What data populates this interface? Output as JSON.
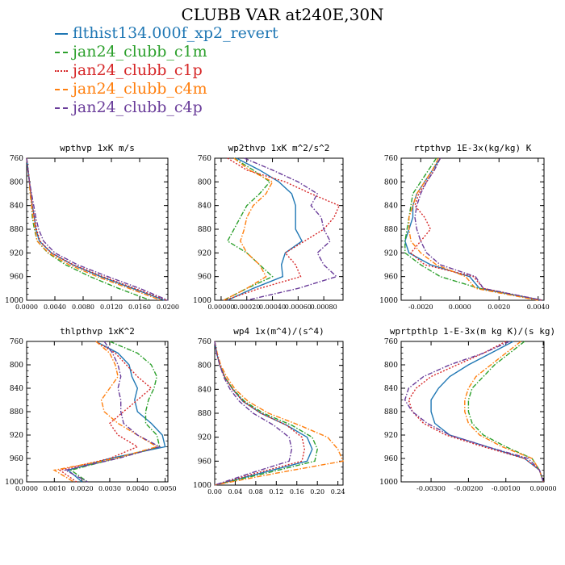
{
  "title": "CLUBB VAR at240E,30N",
  "colors": {
    "flthist134.000f_xp2_revert": "#1f77b4",
    "jan24_clubb_c1m": "#2ca02c",
    "jan24_clubb_c1p": "#d62728",
    "jan24_clubb_c4m": "#ff7f0e",
    "jan24_clubb_c4p": "#6a3d9a"
  },
  "legend": [
    {
      "label": "flthist134.000f_xp2_revert",
      "color": "#1f77b4",
      "dash": "solid"
    },
    {
      "label": "jan24_clubb_c1m",
      "color": "#2ca02c",
      "dash": "dashdot"
    },
    {
      "label": "jan24_clubb_c1p",
      "color": "#d62728",
      "dash": "dotted"
    },
    {
      "label": "jan24_clubb_c4m",
      "color": "#ff7f0e",
      "dash": "dashdot"
    },
    {
      "label": "jan24_clubb_c4p",
      "color": "#6a3d9a",
      "dash": "dashdot"
    }
  ],
  "chart_data": [
    {
      "type": "line",
      "title": "wpthvp  1xK m/s",
      "xlim": [
        0,
        0.02
      ],
      "xticks": [
        "0.0000",
        "0.0040",
        "0.0080",
        "0.0120",
        "0.0160",
        "0.0200"
      ],
      "xtick_values": [
        0,
        0.004,
        0.008,
        0.012,
        0.016,
        0.02
      ],
      "ylim": [
        760,
        1000
      ],
      "yticks": [
        760,
        800,
        840,
        880,
        920,
        960,
        1000
      ],
      "y": [
        760,
        780,
        800,
        820,
        840,
        860,
        880,
        900,
        920,
        940,
        960,
        980,
        1000
      ],
      "series": [
        {
          "name": "flthist134.000f_xp2_revert",
          "values": [
            0.0,
            0.0002,
            0.0004,
            0.0006,
            0.0008,
            0.0011,
            0.0013,
            0.0018,
            0.0035,
            0.0065,
            0.0105,
            0.015,
            0.0195
          ]
        },
        {
          "name": "jan24_clubb_c1m",
          "values": [
            0.0,
            0.0002,
            0.0004,
            0.0005,
            0.0007,
            0.0008,
            0.0011,
            0.0015,
            0.003,
            0.0055,
            0.009,
            0.013,
            0.0175
          ]
        },
        {
          "name": "jan24_clubb_c1p",
          "values": [
            0.0,
            0.0002,
            0.0004,
            0.0006,
            0.0008,
            0.0011,
            0.0014,
            0.0019,
            0.0035,
            0.0066,
            0.0108,
            0.0153,
            0.0198
          ]
        },
        {
          "name": "jan24_clubb_c4m",
          "values": [
            0.0,
            0.0002,
            0.0004,
            0.0005,
            0.0007,
            0.0009,
            0.0012,
            0.0015,
            0.0031,
            0.006,
            0.01,
            0.0145,
            0.019
          ]
        },
        {
          "name": "jan24_clubb_c4p",
          "values": [
            0.0,
            0.0002,
            0.0004,
            0.0007,
            0.001,
            0.0013,
            0.0017,
            0.0024,
            0.004,
            0.0072,
            0.0115,
            0.016,
            0.02
          ]
        }
      ]
    },
    {
      "type": "line",
      "title": "wp2thvp  1xK m^2/s^2",
      "xlim": [
        -5e-05,
        0.00095
      ],
      "xticks": [
        "0.00000",
        "0.00020",
        "0.00040",
        "0.00060",
        "0.00080"
      ],
      "xtick_values": [
        0,
        0.0002,
        0.0004,
        0.0006,
        0.0008
      ],
      "ylim": [
        760,
        1000
      ],
      "yticks": [
        760,
        800,
        840,
        880,
        920,
        960,
        1000
      ],
      "y": [
        760,
        780,
        800,
        820,
        840,
        860,
        880,
        900,
        920,
        940,
        960,
        980,
        1000
      ],
      "series": [
        {
          "name": "flthist134.000f_xp2_revert",
          "values": [
            0.00012,
            0.0003,
            0.00045,
            0.00055,
            0.00058,
            0.00058,
            0.00058,
            0.00063,
            0.0005,
            0.00047,
            0.00048,
            0.00025,
            5e-05
          ]
        },
        {
          "name": "jan24_clubb_c1m",
          "values": [
            0.0001,
            0.00025,
            0.00038,
            0.0003,
            0.0002,
            0.00015,
            0.0001,
            5e-05,
            0.0002,
            0.0003,
            0.0004,
            0.0002,
            2e-05
          ]
        },
        {
          "name": "jan24_clubb_c1p",
          "values": [
            5e-05,
            0.0002,
            0.0005,
            0.0007,
            0.00092,
            0.00088,
            0.0008,
            0.00065,
            0.0005,
            0.00058,
            0.00062,
            0.0003,
            3e-05
          ]
        },
        {
          "name": "jan24_clubb_c4m",
          "values": [
            0.0001,
            0.00022,
            0.0004,
            0.00035,
            0.00025,
            0.0002,
            0.00018,
            0.00015,
            0.0002,
            0.0003,
            0.00035,
            0.0002,
            2e-05
          ]
        },
        {
          "name": "jan24_clubb_c4p",
          "values": [
            0.00018,
            0.0004,
            0.0006,
            0.00075,
            0.0007,
            0.00078,
            0.0008,
            0.00085,
            0.00075,
            0.0008,
            0.0009,
            0.0006,
            0.0002
          ]
        }
      ]
    },
    {
      "type": "line",
      "title": "rtpthvp  1E-3x(kg/kg) K",
      "xlim": [
        -0.003,
        0.0043
      ],
      "xticks": [
        "-0.0020",
        "0.0000",
        "0.0020",
        "0.0040"
      ],
      "xtick_values": [
        -0.002,
        0,
        0.002,
        0.004
      ],
      "ylim": [
        760,
        1000
      ],
      "yticks": [
        760,
        800,
        840,
        880,
        920,
        960,
        1000
      ],
      "y": [
        760,
        780,
        800,
        820,
        840,
        860,
        880,
        900,
        920,
        940,
        960,
        980,
        1000
      ],
      "series": [
        {
          "name": "flthist134.000f_xp2_revert",
          "values": [
            -0.001,
            -0.0014,
            -0.0018,
            -0.0022,
            -0.0024,
            -0.0024,
            -0.0026,
            -0.0028,
            -0.0026,
            -0.0015,
            0.0005,
            0.001,
            0.0042
          ]
        },
        {
          "name": "jan24_clubb_c1m",
          "values": [
            -0.0012,
            -0.0016,
            -0.002,
            -0.0024,
            -0.0025,
            -0.0026,
            -0.0027,
            -0.0028,
            -0.0028,
            -0.002,
            -0.001,
            0.001,
            0.004
          ]
        },
        {
          "name": "jan24_clubb_c1p",
          "values": [
            -0.001,
            -0.0013,
            -0.0017,
            -0.0021,
            -0.0023,
            -0.0018,
            -0.0015,
            -0.002,
            -0.0025,
            -0.0018,
            0.0007,
            0.0012,
            0.0042
          ]
        },
        {
          "name": "jan24_clubb_c4m",
          "values": [
            -0.0011,
            -0.0014,
            -0.0018,
            -0.0022,
            -0.0024,
            -0.0026,
            -0.0026,
            -0.0025,
            -0.002,
            -0.0012,
            0.0003,
            0.0008,
            0.004
          ]
        },
        {
          "name": "jan24_clubb_c4p",
          "values": [
            -0.001,
            -0.0013,
            -0.0017,
            -0.002,
            -0.0022,
            -0.0023,
            -0.0022,
            -0.002,
            -0.0017,
            -0.001,
            0.0008,
            0.0012,
            0.0042
          ]
        }
      ]
    },
    {
      "type": "line",
      "title": "thlpthvp  1xK^2",
      "xlim": [
        0,
        0.0051
      ],
      "xticks": [
        "0.0000",
        "0.0010",
        "0.0020",
        "0.0030",
        "0.0040",
        "0.0050"
      ],
      "xtick_values": [
        0,
        0.001,
        0.002,
        0.003,
        0.004,
        0.005
      ],
      "ylim": [
        760,
        1000
      ],
      "yticks": [
        760,
        800,
        840,
        880,
        920,
        960,
        1000
      ],
      "y": [
        760,
        780,
        800,
        820,
        840,
        860,
        880,
        900,
        920,
        940,
        960,
        980,
        1000
      ],
      "series": [
        {
          "name": "flthist134.000f_xp2_revert",
          "values": [
            0.0025,
            0.0033,
            0.0037,
            0.0038,
            0.004,
            0.0039,
            0.004,
            0.0045,
            0.0049,
            0.005,
            0.003,
            0.0015,
            0.002
          ]
        },
        {
          "name": "jan24_clubb_c1m",
          "values": [
            0.003,
            0.004,
            0.0045,
            0.0047,
            0.0046,
            0.0044,
            0.0043,
            0.0043,
            0.0047,
            0.0048,
            0.0032,
            0.0016,
            0.0022
          ]
        },
        {
          "name": "jan24_clubb_c1p",
          "values": [
            0.0025,
            0.0032,
            0.0036,
            0.004,
            0.0045,
            0.004,
            0.0035,
            0.003,
            0.0033,
            0.004,
            0.003,
            0.0012,
            0.0018
          ]
        },
        {
          "name": "jan24_clubb_c4m",
          "values": [
            0.0025,
            0.003,
            0.0032,
            0.0033,
            0.003,
            0.0027,
            0.0028,
            0.0033,
            0.004,
            0.0047,
            0.0032,
            0.001,
            0.0017
          ]
        },
        {
          "name": "jan24_clubb_c4p",
          "values": [
            0.0028,
            0.0031,
            0.0033,
            0.0034,
            0.0033,
            0.0034,
            0.0034,
            0.0035,
            0.004,
            0.0048,
            0.0033,
            0.0014,
            0.0022
          ]
        }
      ]
    },
    {
      "type": "line",
      "title": "wp4  1x(m^4)/(s^4)",
      "xlim": [
        0,
        0.25
      ],
      "xticks": [
        "0.00",
        "0.04",
        "0.08",
        "0.12",
        "0.16",
        "0.20",
        "0.24"
      ],
      "xtick_values": [
        0,
        0.04,
        0.08,
        0.12,
        0.16,
        0.2,
        0.24
      ],
      "ylim": [
        760,
        1000
      ],
      "yticks": [
        760,
        800,
        840,
        880,
        920,
        960,
        1000
      ],
      "y": [
        760,
        780,
        800,
        820,
        840,
        860,
        880,
        900,
        920,
        940,
        960,
        980,
        1000
      ],
      "series": [
        {
          "name": "flthist134.000f_xp2_revert",
          "values": [
            0.0,
            0.004,
            0.01,
            0.02,
            0.035,
            0.055,
            0.09,
            0.14,
            0.18,
            0.19,
            0.18,
            0.09,
            0.0
          ]
        },
        {
          "name": "jan24_clubb_c1m",
          "values": [
            0.0,
            0.004,
            0.01,
            0.02,
            0.036,
            0.058,
            0.095,
            0.15,
            0.19,
            0.2,
            0.195,
            0.1,
            0.0
          ]
        },
        {
          "name": "jan24_clubb_c1p",
          "values": [
            0.0,
            0.004,
            0.01,
            0.02,
            0.035,
            0.055,
            0.09,
            0.14,
            0.17,
            0.175,
            0.17,
            0.08,
            0.0
          ]
        },
        {
          "name": "jan24_clubb_c4m",
          "values": [
            0.0,
            0.005,
            0.012,
            0.024,
            0.04,
            0.065,
            0.105,
            0.165,
            0.22,
            0.24,
            0.25,
            0.12,
            0.0
          ]
        },
        {
          "name": "jan24_clubb_c4p",
          "values": [
            0.0,
            0.004,
            0.01,
            0.018,
            0.03,
            0.048,
            0.075,
            0.115,
            0.145,
            0.15,
            0.145,
            0.07,
            0.0
          ]
        }
      ]
    },
    {
      "type": "line",
      "title": "wprtpthlp  1-E-3x(m kg K)/(s kg)",
      "xlim": [
        -0.0038,
        2e-05
      ],
      "xticks": [
        "-0.00300",
        "-0.00200",
        "-0.00100",
        "0.00000"
      ],
      "xtick_values": [
        -0.003,
        -0.002,
        -0.001,
        0
      ],
      "ylim": [
        760,
        1000
      ],
      "yticks": [
        760,
        800,
        840,
        880,
        920,
        960,
        1000
      ],
      "y": [
        760,
        780,
        800,
        820,
        840,
        860,
        880,
        900,
        920,
        940,
        960,
        980,
        1000
      ],
      "series": [
        {
          "name": "flthist134.000f_xp2_revert",
          "values": [
            -0.0008,
            -0.0014,
            -0.002,
            -0.0025,
            -0.0028,
            -0.003,
            -0.003,
            -0.0029,
            -0.0025,
            -0.0015,
            -0.0005,
            -0.0001,
            0.0
          ]
        },
        {
          "name": "jan24_clubb_c1m",
          "values": [
            -0.0005,
            -0.0009,
            -0.0013,
            -0.0016,
            -0.0019,
            -0.002,
            -0.002,
            -0.0019,
            -0.0016,
            -0.001,
            -0.0003,
            -0.0001,
            0.0
          ]
        },
        {
          "name": "jan24_clubb_c1p",
          "values": [
            -0.001,
            -0.0016,
            -0.0023,
            -0.003,
            -0.0034,
            -0.0036,
            -0.0035,
            -0.0032,
            -0.0026,
            -0.0016,
            -0.0005,
            -0.0001,
            0.0
          ]
        },
        {
          "name": "jan24_clubb_c4m",
          "values": [
            -0.0006,
            -0.001,
            -0.0014,
            -0.0018,
            -0.002,
            -0.0021,
            -0.0021,
            -0.002,
            -0.0017,
            -0.0011,
            -0.0003,
            -0.0001,
            0.0
          ]
        },
        {
          "name": "jan24_clubb_c4p",
          "values": [
            -0.0009,
            -0.0016,
            -0.0025,
            -0.0032,
            -0.0036,
            -0.0037,
            -0.0035,
            -0.0031,
            -0.0025,
            -0.0015,
            -0.0004,
            -0.0001,
            0.0
          ]
        }
      ]
    }
  ]
}
